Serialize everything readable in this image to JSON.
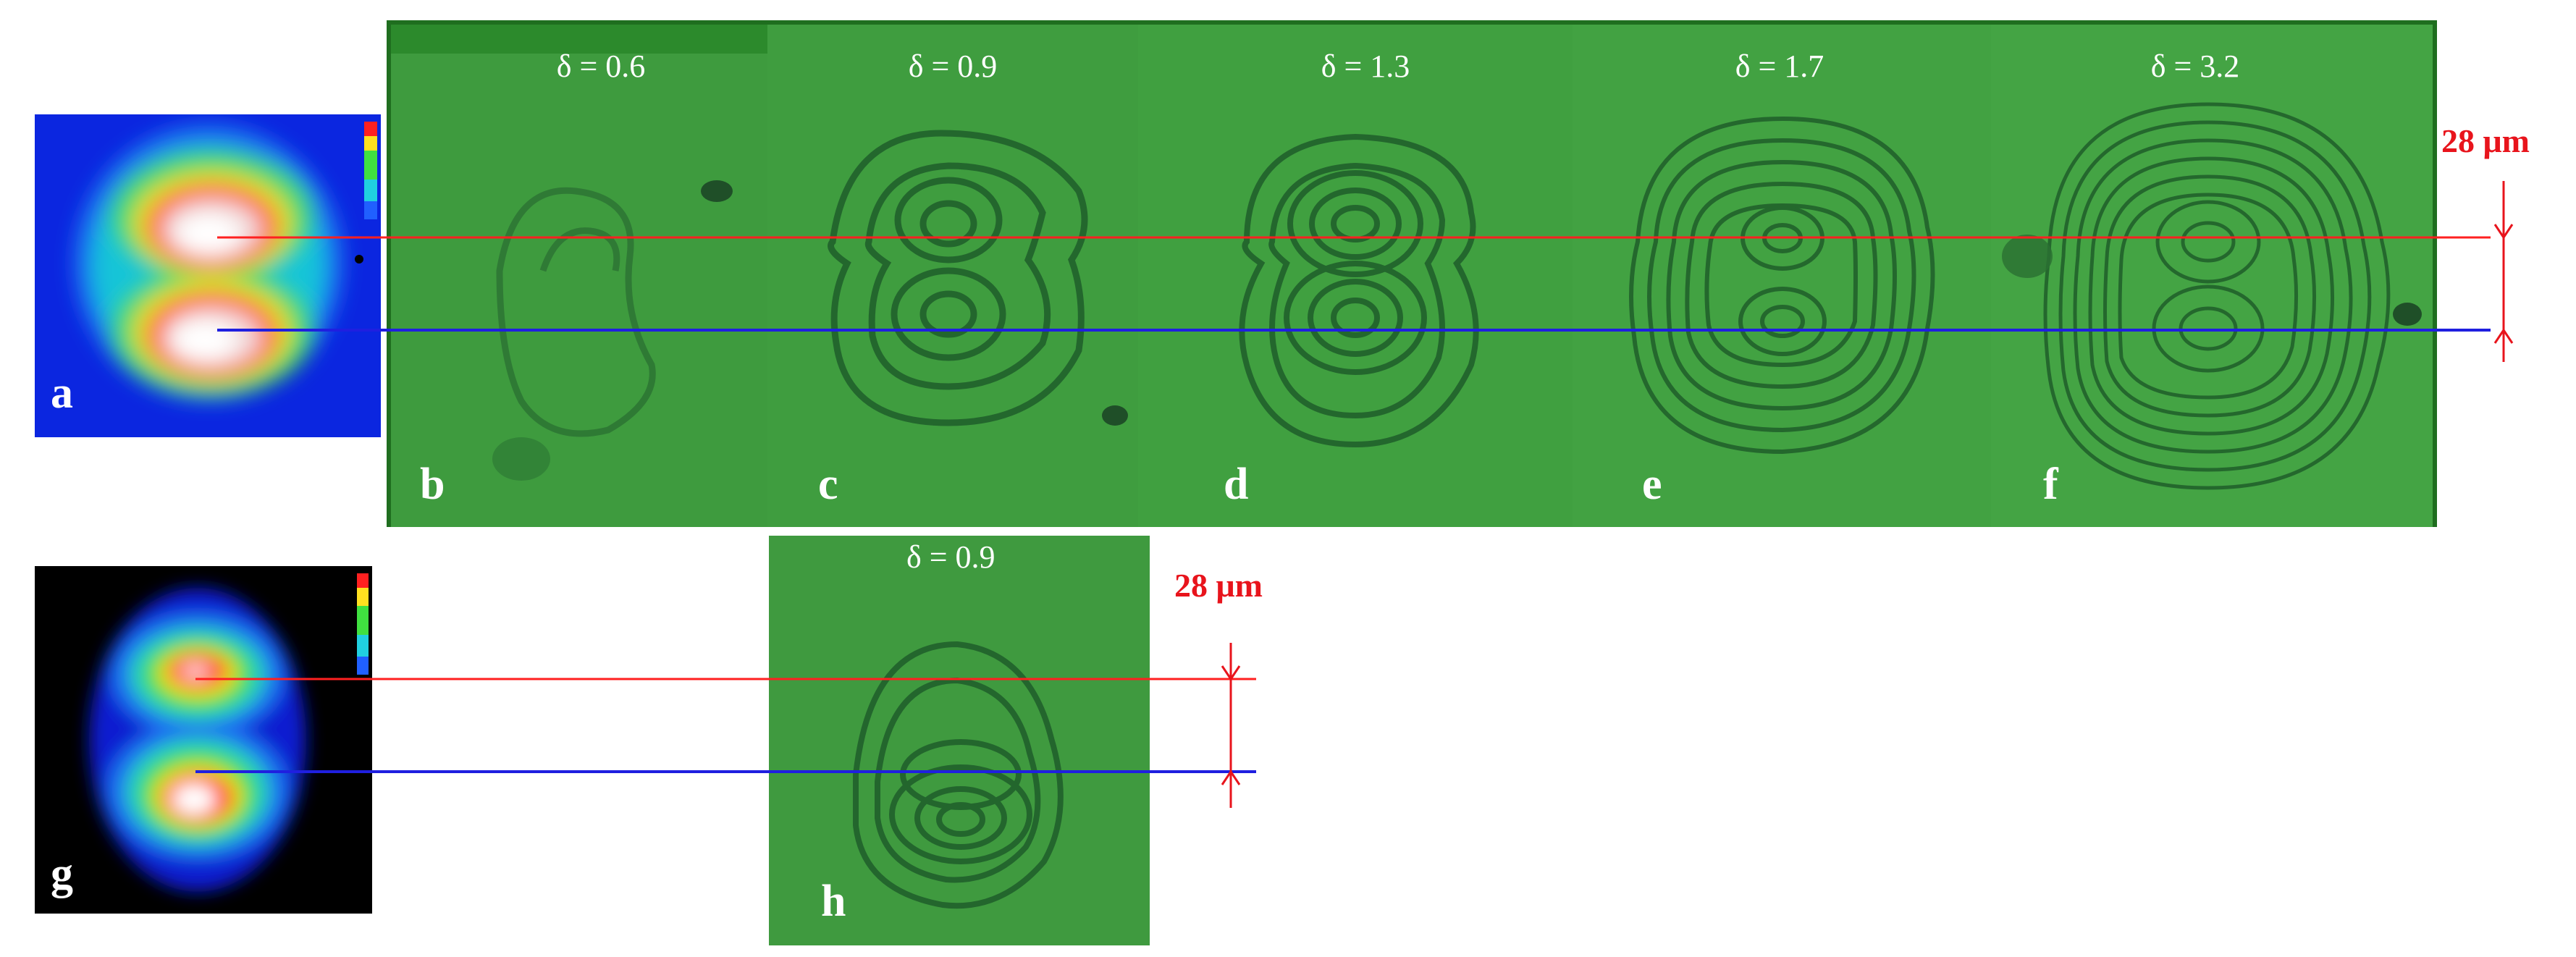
{
  "figure": {
    "top_row": {
      "heatmap_label": "a",
      "panels": [
        {
          "label": "b",
          "delta": "δ = 0.6"
        },
        {
          "label": "c",
          "delta": "δ = 0.9"
        },
        {
          "label": "d",
          "delta": "δ = 1.3"
        },
        {
          "label": "e",
          "delta": "δ = 1.7"
        },
        {
          "label": "f",
          "delta": "δ = 3.2"
        }
      ],
      "scale_label": "28 μm"
    },
    "bottom_row": {
      "heatmap_label": "g",
      "panel": {
        "label": "h",
        "delta": "δ = 0.9"
      },
      "scale_label": "28 μm"
    }
  },
  "colors": {
    "top_line": "#ff2020",
    "bottom_line": "#2020ff",
    "scale": "#e8141c",
    "panel_green": "#3c9a3c",
    "ring": "#1f5e2a"
  }
}
